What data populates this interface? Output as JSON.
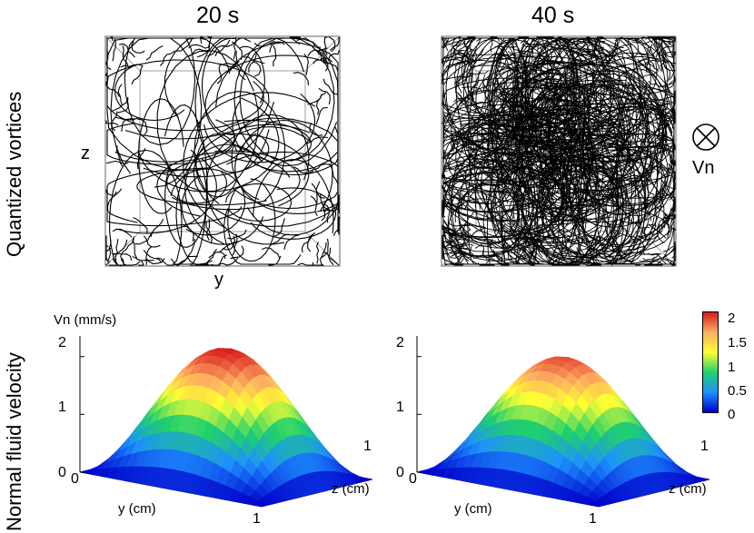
{
  "figure": {
    "row_labels": {
      "top": "Quantized vortices",
      "bottom": "Normal fluid velocity"
    },
    "time_labels": [
      "20 s",
      "40 s"
    ],
    "vortex_axes": {
      "vertical": "z",
      "horizontal": "y"
    },
    "flow_indicator": {
      "symbol": "⊗",
      "label": "Vn"
    }
  },
  "chart_data": [
    {
      "type": "heatmap",
      "title": "20 s",
      "zlabel": "Vn (mm/s)",
      "xlabel": "y (cm)",
      "ylabel": "z (cm)",
      "z_ticks": [
        "0",
        "1",
        "2"
      ],
      "x_ticks": [
        "0",
        "1"
      ],
      "y_ticks": [
        "0",
        "1"
      ],
      "peak_value": 2.2,
      "zlim": [
        0,
        2.2
      ]
    },
    {
      "type": "heatmap",
      "title": "40 s",
      "xlabel": "y (cm)",
      "ylabel": "z (cm)",
      "z_ticks": [
        "0",
        "1",
        "2"
      ],
      "x_ticks": [
        "0",
        "1"
      ],
      "y_ticks": [
        "0",
        "1"
      ],
      "peak_value": 2.05,
      "zlim": [
        0,
        2.2
      ]
    }
  ],
  "colorbar": {
    "ticks": [
      "2",
      "1.5",
      "1",
      "0.5",
      "0"
    ],
    "colors": [
      "#d7191c",
      "#fdae61",
      "#ffff33",
      "#1fd16b",
      "#1e90ff",
      "#0000cc"
    ]
  }
}
